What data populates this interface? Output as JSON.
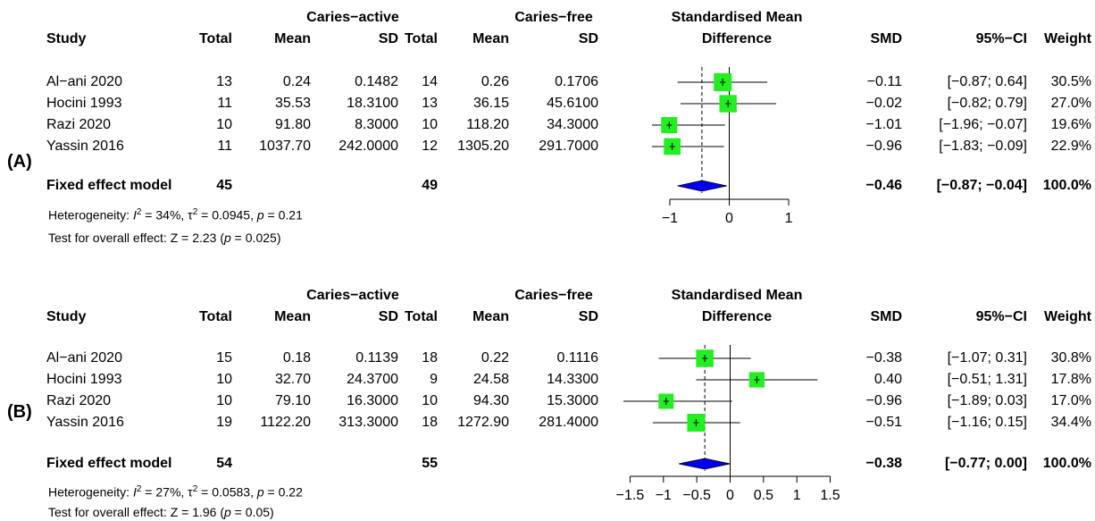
{
  "panels": [
    {
      "label": "(A)",
      "headers": {
        "group1": "Caries−active",
        "group2": "Caries−free",
        "plot_title_1": "Standardised Mean",
        "plot_title_2": "Difference",
        "study": "Study",
        "total": "Total",
        "mean": "Mean",
        "sd": "SD",
        "smd": "SMD",
        "ci": "95%−CI",
        "weight": "Weight"
      },
      "studies": [
        {
          "study": "Al−ani 2020",
          "total1": "13",
          "mean1": "0.24",
          "sd1": "0.1482",
          "total2": "14",
          "mean2": "0.26",
          "sd2": "0.1706",
          "smd": "−0.11",
          "ci": "[−0.87; 0.64]",
          "weight": "30.5%"
        },
        {
          "study": "Hocini 1993",
          "total1": "11",
          "mean1": "35.53",
          "sd1": "18.3100",
          "total2": "13",
          "mean2": "36.15",
          "sd2": "45.6100",
          "smd": "−0.02",
          "ci": "[−0.82; 0.79]",
          "weight": "27.0%"
        },
        {
          "study": "Razi 2020",
          "total1": "10",
          "mean1": "91.80",
          "sd1": "8.3000",
          "total2": "10",
          "mean2": "118.20",
          "sd2": "34.3000",
          "smd": "−1.01",
          "ci": "[−1.96; −0.07]",
          "weight": "19.6%"
        },
        {
          "study": "Yassin 2016",
          "total1": "11",
          "mean1": "1037.70",
          "sd1": "242.0000",
          "total2": "12",
          "mean2": "1305.20",
          "sd2": "291.7000",
          "smd": "−0.96",
          "ci": "[−1.83; −0.09]",
          "weight": "22.9%"
        }
      ],
      "fixed": {
        "label": "Fixed effect model",
        "total1": "45",
        "total2": "49",
        "smd": "−0.46",
        "ci": "[−0.87; −0.04]",
        "weight": "100.0%"
      },
      "heterogeneity": {
        "prefix": "Heterogeneity: ",
        "i2": "34%",
        "tau2": "0.0945",
        "p": "0.21"
      },
      "overall": {
        "prefix": "Test for overall effect: Z = 2.23 (",
        "p": "0.025",
        "suffix": ")"
      },
      "ticks": [
        "−1",
        "0",
        "1"
      ]
    },
    {
      "label": "(B)",
      "headers": {
        "group1": "Caries−active",
        "group2": "Caries−free",
        "plot_title_1": "Standardised Mean",
        "plot_title_2": "Difference",
        "study": "Study",
        "total": "Total",
        "mean": "Mean",
        "sd": "SD",
        "smd": "SMD",
        "ci": "95%−CI",
        "weight": "Weight"
      },
      "studies": [
        {
          "study": "Al−ani 2020",
          "total1": "15",
          "mean1": "0.18",
          "sd1": "0.1139",
          "total2": "18",
          "mean2": "0.22",
          "sd2": "0.1116",
          "smd": "−0.38",
          "ci": "[−1.07; 0.31]",
          "weight": "30.8%"
        },
        {
          "study": "Hocini 1993",
          "total1": "10",
          "mean1": "32.70",
          "sd1": "24.3700",
          "total2": "9",
          "mean2": "24.58",
          "sd2": "14.3300",
          "smd": "0.40",
          "ci": "[−0.51; 1.31]",
          "weight": "17.8%"
        },
        {
          "study": "Razi 2020",
          "total1": "10",
          "mean1": "79.10",
          "sd1": "16.3000",
          "total2": "10",
          "mean2": "94.30",
          "sd2": "15.3000",
          "smd": "−0.96",
          "ci": "[−1.89; 0.03]",
          "weight": "17.0%"
        },
        {
          "study": "Yassin 2016",
          "total1": "19",
          "mean1": "1122.20",
          "sd1": "313.3000",
          "total2": "18",
          "mean2": "1272.90",
          "sd2": "281.4000",
          "smd": "−0.51",
          "ci": "[−1.16; 0.15]",
          "weight": "34.4%"
        }
      ],
      "fixed": {
        "label": "Fixed effect model",
        "total1": "54",
        "total2": "55",
        "smd": "−0.38",
        "ci": "[−0.77; 0.00]",
        "weight": "100.0%"
      },
      "heterogeneity": {
        "prefix": "Heterogeneity: ",
        "i2": "27%",
        "tau2": "0.0583",
        "p": "0.22"
      },
      "overall": {
        "prefix": "Test for overall effect: Z = 1.96 (",
        "p": "0.05",
        "suffix": ")"
      },
      "ticks": [
        "−1.5",
        "−1",
        "−0.5",
        "0",
        "0.5",
        "1",
        "1.5"
      ]
    }
  ],
  "chart_data": [
    {
      "type": "forest",
      "title": "Standardised Mean Difference",
      "xlim": [
        -1.3,
        1.3
      ],
      "xticks": [
        -1,
        0,
        1
      ],
      "studies": [
        {
          "name": "Al−ani 2020",
          "smd": -0.11,
          "lower": -0.87,
          "upper": 0.64,
          "weight": 30.5
        },
        {
          "name": "Hocini 1993",
          "smd": -0.02,
          "lower": -0.82,
          "upper": 0.79,
          "weight": 27.0
        },
        {
          "name": "Razi 2020",
          "smd": -1.01,
          "lower": -1.96,
          "upper": -0.07,
          "weight": 19.6
        },
        {
          "name": "Yassin 2016",
          "smd": -0.96,
          "lower": -1.83,
          "upper": -0.09,
          "weight": 22.9
        }
      ],
      "pooled": {
        "smd": -0.46,
        "lower": -0.87,
        "upper": -0.04
      },
      "colors": {
        "square": "#22ee22",
        "diamond": "#0000ee"
      }
    },
    {
      "type": "forest",
      "title": "Standardised Mean Difference",
      "xlim": [
        -1.6,
        1.6
      ],
      "xticks": [
        -1.5,
        -1,
        -0.5,
        0,
        0.5,
        1,
        1.5
      ],
      "studies": [
        {
          "name": "Al−ani 2020",
          "smd": -0.38,
          "lower": -1.07,
          "upper": 0.31,
          "weight": 30.8
        },
        {
          "name": "Hocini 1993",
          "smd": 0.4,
          "lower": -0.51,
          "upper": 1.31,
          "weight": 17.8
        },
        {
          "name": "Razi 2020",
          "smd": -0.96,
          "lower": -1.89,
          "upper": 0.03,
          "weight": 17.0
        },
        {
          "name": "Yassin 2016",
          "smd": -0.51,
          "lower": -1.16,
          "upper": 0.15,
          "weight": 34.4
        }
      ],
      "pooled": {
        "smd": -0.38,
        "lower": -0.77,
        "upper": 0.0
      },
      "colors": {
        "square": "#22ee22",
        "diamond": "#0000ee"
      }
    }
  ]
}
